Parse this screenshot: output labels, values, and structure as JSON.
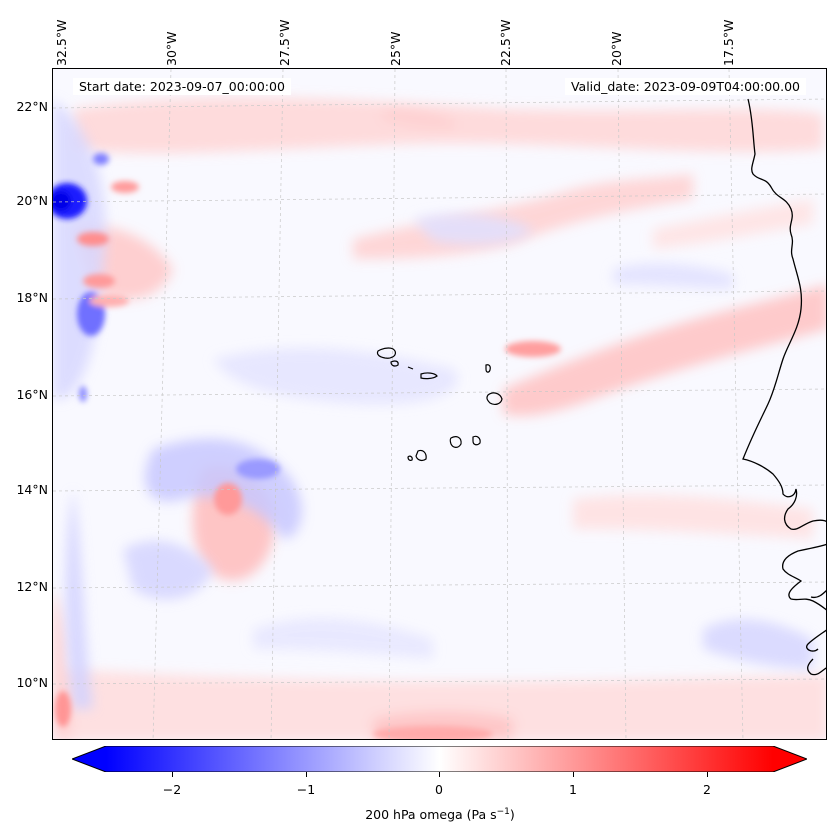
{
  "map": {
    "start_date": "Start date: 2023-09-07_00:00:00",
    "valid_date": "Valid_date: 2023-09-09T04:00:00.00",
    "lon_labels": [
      "32.5°W",
      "30°W",
      "27.5°W",
      "25°W",
      "22.5°W",
      "20°W",
      "17.5°W"
    ],
    "lat_labels": [
      "22°N",
      "20°N",
      "18°N",
      "16°N",
      "14°N",
      "12°N",
      "10°N"
    ],
    "field": "200 hPa omega",
    "colors": {
      "negative": "#0000ff",
      "neutral": "#ffffff",
      "positive": "#ff0000",
      "coast": "#000000"
    }
  },
  "colorbar": {
    "label_main": "200 hPa omega (Pa s",
    "label_sup": "−1",
    "label_end": ")",
    "ticks": [
      "−2",
      "−1",
      "0",
      "1",
      "2"
    ],
    "range": [
      -2.5,
      2.5
    ]
  }
}
